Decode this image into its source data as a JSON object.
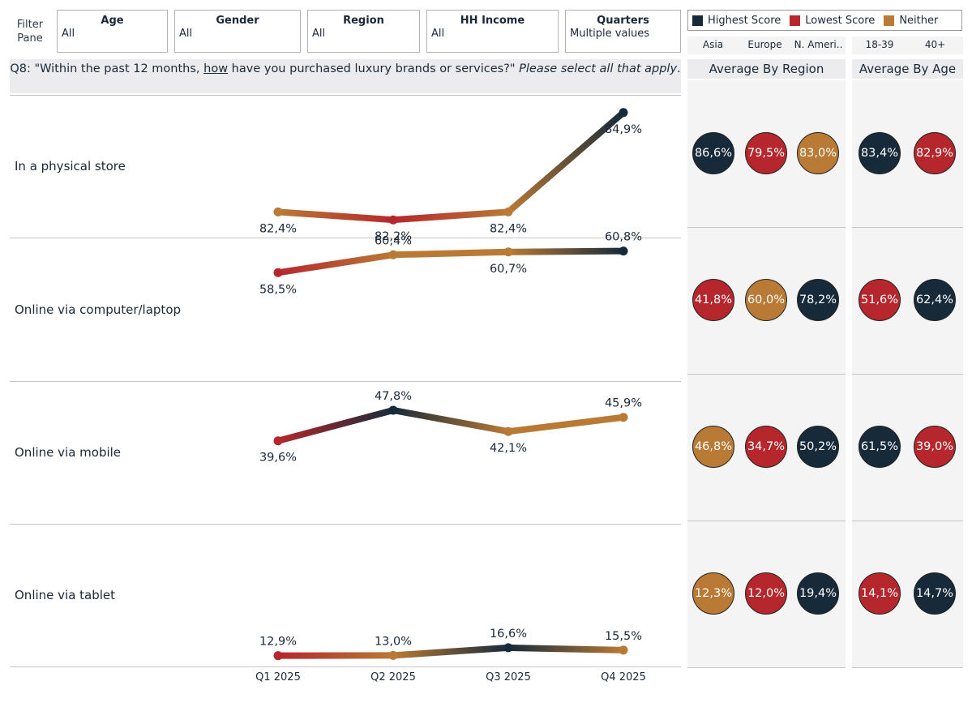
{
  "filters": {
    "pane_label": "Filter Pane",
    "items": [
      {
        "title": "Age",
        "value": "All"
      },
      {
        "title": "Gender",
        "value": "All"
      },
      {
        "title": "Region",
        "value": "All"
      },
      {
        "title": "HH Income",
        "value": "All"
      },
      {
        "title": "Quarters",
        "value": "Multiple values"
      }
    ]
  },
  "legend": {
    "items": [
      {
        "label": "Highest Score",
        "color": "#172a3a"
      },
      {
        "label": "Lowest Score",
        "color": "#b5272d"
      },
      {
        "label": "Neither",
        "color": "#b87a35"
      }
    ]
  },
  "question": {
    "prefix": "Q8: \"Within the past 12 months, ",
    "underlined": "how",
    "middle": " have you purchased luxury brands or services?\" ",
    "italic": "Please select all that apply",
    "suffix": "."
  },
  "panels": {
    "region": {
      "title": "Average By Region",
      "columns": [
        "Asia",
        "Europe",
        "N. Ameri.."
      ]
    },
    "age": {
      "title": "Average By Age",
      "columns": [
        "18-39",
        "40+"
      ]
    }
  },
  "colors": {
    "highest": "#172a3a",
    "lowest": "#b5272d",
    "neither": "#b87a35"
  },
  "chart_data": {
    "type": "line",
    "x": [
      "Q1 2025",
      "Q2 2025",
      "Q3 2025",
      "Q4 2025"
    ],
    "rows": [
      {
        "label": "In a physical store",
        "values": [
          82.4,
          82.2,
          82.4,
          84.9
        ],
        "value_labels": [
          "82,4%",
          "82,2%",
          "82,4%",
          "84,9%"
        ],
        "label_positions": [
          "below",
          "below",
          "below",
          "below"
        ],
        "point_status": [
          "neither",
          "lowest",
          "neither",
          "highest"
        ],
        "ylim": [
          82.0,
          85.1
        ],
        "region": [
          {
            "label": "86,6%",
            "status": "highest"
          },
          {
            "label": "79,5%",
            "status": "lowest"
          },
          {
            "label": "83,0%",
            "status": "neither"
          }
        ],
        "age": [
          {
            "label": "83,4%",
            "status": "highest"
          },
          {
            "label": "82,9%",
            "status": "lowest"
          }
        ]
      },
      {
        "label": "Online via computer/laptop",
        "values": [
          58.5,
          60.4,
          60.7,
          60.8
        ],
        "value_labels": [
          "58,5%",
          "60,4%",
          "60,7%",
          "60,8%"
        ],
        "label_positions": [
          "below",
          "above",
          "below",
          "above"
        ],
        "point_status": [
          "lowest",
          "neither",
          "neither",
          "highest"
        ],
        "ylim": [
          48.0,
          61.2
        ],
        "region": [
          {
            "label": "41,8%",
            "status": "lowest"
          },
          {
            "label": "60,0%",
            "status": "neither"
          },
          {
            "label": "78,2%",
            "status": "highest"
          }
        ],
        "age": [
          {
            "label": "51,6%",
            "status": "lowest"
          },
          {
            "label": "62,4%",
            "status": "highest"
          }
        ]
      },
      {
        "label": "Online via mobile",
        "values": [
          39.6,
          47.8,
          42.1,
          45.9
        ],
        "value_labels": [
          "39,6%",
          "47,8%",
          "42,1%",
          "45,9%"
        ],
        "label_positions": [
          "below",
          "above",
          "below",
          "above"
        ],
        "point_status": [
          "lowest",
          "highest",
          "neither",
          "neither"
        ],
        "ylim": [
          20.0,
          53.0
        ],
        "region": [
          {
            "label": "46,8%",
            "status": "neither"
          },
          {
            "label": "34,7%",
            "status": "lowest"
          },
          {
            "label": "50,2%",
            "status": "highest"
          }
        ],
        "age": [
          {
            "label": "61,5%",
            "status": "highest"
          },
          {
            "label": "39,0%",
            "status": "lowest"
          }
        ]
      },
      {
        "label": "Online via tablet",
        "values": [
          12.9,
          13.0,
          16.6,
          15.5
        ],
        "value_labels": [
          "12,9%",
          "13,0%",
          "16,6%",
          "15,5%"
        ],
        "label_positions": [
          "above",
          "above",
          "above",
          "above"
        ],
        "point_status": [
          "lowest",
          "neither",
          "highest",
          "neither"
        ],
        "ylim": [
          12.4,
          70.0
        ],
        "region": [
          {
            "label": "12,3%",
            "status": "neither"
          },
          {
            "label": "12,0%",
            "status": "lowest"
          },
          {
            "label": "19,4%",
            "status": "highest"
          }
        ],
        "age": [
          {
            "label": "14,1%",
            "status": "lowest"
          },
          {
            "label": "14,7%",
            "status": "highest"
          }
        ]
      }
    ]
  }
}
